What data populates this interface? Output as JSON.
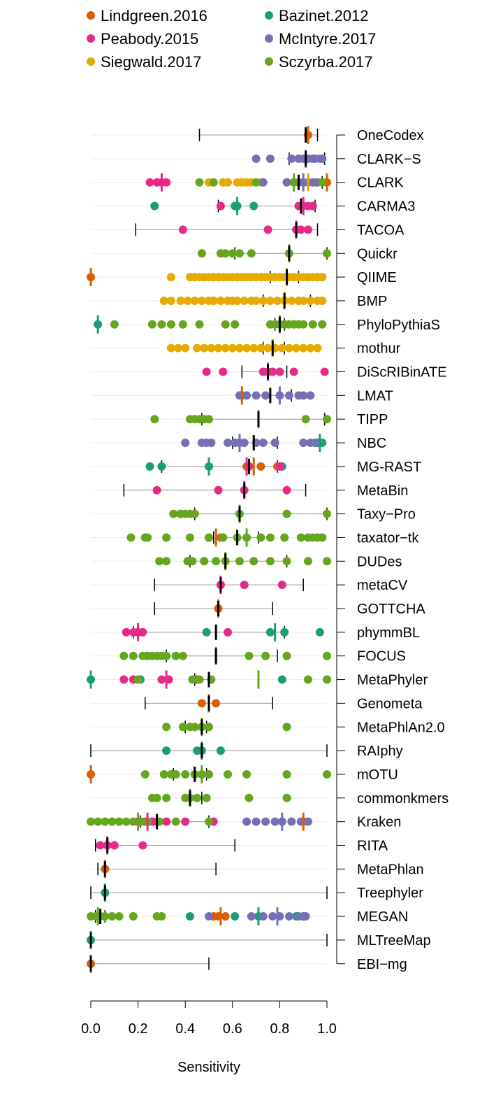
{
  "chart_data": {
    "type": "scatter",
    "xlabel": "Sensitivity",
    "ylabel": "",
    "xlim": [
      0,
      1
    ],
    "x_ticks": [
      "0.0",
      "0.2",
      "0.4",
      "0.6",
      "0.8",
      "1.0"
    ],
    "grid": true,
    "legend_position": "top",
    "legend": [
      {
        "key": "L",
        "name": "Lindgreen.2016",
        "color": "#d95f02"
      },
      {
        "key": "B",
        "name": "Bazinet.2012",
        "color": "#1b9e77"
      },
      {
        "key": "P",
        "name": "Peabody.2015",
        "color": "#e7298a"
      },
      {
        "key": "M",
        "name": "McIntyre.2017",
        "color": "#7570b3"
      },
      {
        "key": "S",
        "name": "Siegwald.2017",
        "color": "#e6ab02"
      },
      {
        "key": "Z",
        "name": "Sczyrba.2017",
        "color": "#66a61e"
      }
    ],
    "methods": [
      {
        "name": "OneCodex",
        "median": 0.91,
        "range": [
          0.46,
          0.96
        ],
        "series_medians": {
          "L": 0.92
        },
        "points": {
          "L": [
            0.92
          ]
        }
      },
      {
        "name": "CLARK−S",
        "median": 0.91,
        "range": [
          0.84,
          0.99
        ],
        "series_medians": {
          "M": 0.91
        },
        "points": {
          "M": [
            0.7,
            0.76,
            0.85,
            0.88,
            0.9,
            0.92,
            0.94,
            0.95,
            0.97,
            0.98
          ]
        }
      },
      {
        "name": "CLARK",
        "median": 0.88,
        "range": [
          0.86,
          0.98
        ],
        "series_medians": {
          "L": 1.0,
          "P": 0.3,
          "S": 0.92,
          "M": 0.9,
          "Z": 0.86
        },
        "points": {
          "L": [
            1.0
          ],
          "P": [
            0.25,
            0.28,
            0.3,
            0.32
          ],
          "S": [
            0.5,
            0.56,
            0.58,
            0.62,
            0.64,
            0.66,
            0.68,
            0.72,
            0.88,
            0.92,
            0.95
          ],
          "M": [
            0.73,
            0.83,
            0.86,
            0.88,
            0.9,
            0.92,
            0.94,
            0.96
          ],
          "Z": [
            0.46,
            0.52,
            0.7,
            0.86,
            0.98
          ]
        }
      },
      {
        "name": "CARMA3",
        "median": 0.89,
        "range": [
          0.54,
          0.95
        ],
        "series_medians": {
          "B": 0.62,
          "P": 0.9
        },
        "points": {
          "B": [
            0.27,
            0.61,
            0.62,
            0.69,
            0.94
          ],
          "P": [
            0.55,
            0.88,
            0.9,
            0.92,
            0.94
          ]
        }
      },
      {
        "name": "TACOA",
        "median": 0.87,
        "range": [
          0.19,
          0.96
        ],
        "series_medians": {
          "P": 0.87
        },
        "points": {
          "P": [
            0.39,
            0.75,
            0.87,
            0.89,
            0.92
          ]
        }
      },
      {
        "name": "Quickr",
        "median": 0.84,
        "range": [
          0.61,
          1.0
        ],
        "series_medians": {
          "Z": 0.84
        },
        "points": {
          "Z": [
            0.47,
            0.55,
            0.57,
            0.6,
            0.63,
            0.68,
            0.84,
            1.0
          ]
        }
      },
      {
        "name": "QIIME",
        "median": 0.83,
        "range": [
          0.76,
          0.88
        ],
        "series_medians": {
          "L": 0.0,
          "S": 0.83
        },
        "points": {
          "L": [
            0.0
          ],
          "S": [
            0.34,
            0.42,
            0.44,
            0.46,
            0.48,
            0.5,
            0.52,
            0.54,
            0.56,
            0.58,
            0.6,
            0.62,
            0.64,
            0.66,
            0.68,
            0.7,
            0.72,
            0.74,
            0.76,
            0.78,
            0.8,
            0.82,
            0.84,
            0.86,
            0.88,
            0.9,
            0.92,
            0.94,
            0.96,
            0.98
          ]
        }
      },
      {
        "name": "BMP",
        "median": 0.82,
        "range": [
          0.73,
          0.93
        ],
        "series_medians": {
          "S": 0.82
        },
        "points": {
          "S": [
            0.31,
            0.34,
            0.38,
            0.41,
            0.44,
            0.47,
            0.5,
            0.52,
            0.55,
            0.58,
            0.6,
            0.62,
            0.65,
            0.68,
            0.7,
            0.73,
            0.76,
            0.79,
            0.82,
            0.85,
            0.88,
            0.9,
            0.93,
            0.96,
            0.98
          ]
        }
      },
      {
        "name": "PhyloPythiaS",
        "median": 0.8,
        "range": [
          0.78,
          0.82
        ],
        "series_medians": {
          "B": 0.03,
          "Z": 0.8
        },
        "points": {
          "B": [
            0.03
          ],
          "Z": [
            0.1,
            0.26,
            0.3,
            0.34,
            0.39,
            0.46,
            0.57,
            0.61,
            0.76,
            0.78,
            0.8,
            0.82,
            0.84,
            0.86,
            0.88,
            0.9,
            0.94,
            0.98
          ]
        }
      },
      {
        "name": "mothur",
        "median": 0.77,
        "range": [
          0.73,
          0.82
        ],
        "series_medians": {
          "S": 0.77
        },
        "points": {
          "S": [
            0.34,
            0.37,
            0.4,
            0.45,
            0.48,
            0.51,
            0.54,
            0.57,
            0.6,
            0.63,
            0.66,
            0.69,
            0.72,
            0.75,
            0.78,
            0.81,
            0.84,
            0.87,
            0.9,
            0.93,
            0.96
          ]
        }
      },
      {
        "name": "DiScRIBinATE",
        "median": 0.75,
        "range": [
          0.64,
          0.83
        ],
        "series_medians": {
          "P": 0.75
        },
        "points": {
          "P": [
            0.49,
            0.56,
            0.73,
            0.75,
            0.77,
            0.8,
            0.86,
            0.99
          ]
        }
      },
      {
        "name": "LMAT",
        "median": 0.76,
        "range": [
          0.64,
          0.85
        ],
        "series_medians": {
          "L": 0.64,
          "M": 0.8
        },
        "points": {
          "L": [
            0.64
          ],
          "M": [
            0.63,
            0.66,
            0.7,
            0.74,
            0.8,
            0.84,
            0.88,
            0.9,
            0.93
          ]
        }
      },
      {
        "name": "TIPP",
        "median": 0.71,
        "range": [
          0.47,
          0.99
        ],
        "series_medians": {
          "Z": 0.71
        },
        "points": {
          "Z": [
            0.27,
            0.42,
            0.44,
            0.46,
            0.48,
            0.5,
            0.91,
            1.0
          ]
        }
      },
      {
        "name": "NBC",
        "median": 0.69,
        "range": [
          0.6,
          0.79
        ],
        "series_medians": {
          "B": 0.97,
          "M": 0.63
        },
        "points": {
          "B": [
            0.96,
            0.98
          ],
          "M": [
            0.4,
            0.47,
            0.49,
            0.51,
            0.58,
            0.61,
            0.63,
            0.65,
            0.7,
            0.73,
            0.78,
            0.9,
            0.93,
            0.95
          ]
        }
      },
      {
        "name": "MG-RAST",
        "median": 0.67,
        "range": [
          0.3,
          0.79
        ],
        "series_medians": {
          "B": 0.5,
          "L": 0.69,
          "P": 0.66
        },
        "points": {
          "B": [
            0.25,
            0.3,
            0.5,
            0.81
          ],
          "L": [
            0.66,
            0.72,
            0.79
          ],
          "P": [
            0.67,
            0.8
          ]
        }
      },
      {
        "name": "MetaBin",
        "median": 0.65,
        "range": [
          0.14,
          0.91
        ],
        "series_medians": {
          "P": 0.65
        },
        "points": {
          "P": [
            0.28,
            0.54,
            0.65,
            0.83
          ]
        }
      },
      {
        "name": "Taxy−Pro",
        "median": 0.63,
        "range": [
          0.44,
          1.0
        ],
        "series_medians": {
          "Z": 0.63
        },
        "points": {
          "Z": [
            0.35,
            0.38,
            0.4,
            0.42,
            0.44,
            0.63,
            0.83,
            1.0
          ]
        }
      },
      {
        "name": "taxator−tk",
        "median": 0.62,
        "range": [
          0.52,
          0.71
        ],
        "series_medians": {
          "L": 0.53,
          "Z": 0.66
        },
        "points": {
          "L": [
            0.5,
            0.55
          ],
          "Z": [
            0.17,
            0.23,
            0.24,
            0.32,
            0.42,
            0.5,
            0.56,
            0.62,
            0.66,
            0.72,
            0.76,
            0.82,
            0.89,
            0.92,
            0.94,
            0.96,
            0.98
          ]
        }
      },
      {
        "name": "DUDes",
        "median": 0.57,
        "range": [
          0.42,
          0.83
        ],
        "series_medians": {
          "Z": 0.57
        },
        "points": {
          "Z": [
            0.29,
            0.32,
            0.41,
            0.43,
            0.48,
            0.53,
            0.57,
            0.63,
            0.69,
            0.76,
            0.83,
            0.92,
            1.0
          ]
        }
      },
      {
        "name": "metaCV",
        "median": 0.55,
        "range": [
          0.27,
          0.9
        ],
        "series_medians": {
          "P": 0.55
        },
        "points": {
          "P": [
            0.55,
            0.65,
            0.81
          ]
        }
      },
      {
        "name": "GOTTCHA",
        "median": 0.54,
        "range": [
          0.27,
          0.77
        ],
        "series_medians": {
          "L": 0.54
        },
        "points": {
          "L": [
            0.54
          ]
        }
      },
      {
        "name": "phymmBL",
        "median": 0.53,
        "range": [
          0.18,
          0.82
        ],
        "series_medians": {
          "P": 0.2,
          "B": 0.78
        },
        "points": {
          "P": [
            0.15,
            0.18,
            0.2,
            0.22,
            0.58
          ],
          "B": [
            0.49,
            0.76,
            0.82,
            0.97
          ]
        }
      },
      {
        "name": "FOCUS",
        "median": 0.53,
        "range": [
          0.32,
          0.79
        ],
        "series_medians": {
          "Z": 0.53
        },
        "points": {
          "Z": [
            0.14,
            0.18,
            0.22,
            0.24,
            0.26,
            0.28,
            0.3,
            0.32,
            0.36,
            0.39,
            0.67,
            0.74,
            0.83,
            1.0
          ]
        }
      },
      {
        "name": "MetaPhyler",
        "median": 0.5,
        "range": [
          0.44,
          0.5
        ],
        "series_medians": {
          "B": 0.0,
          "P": 0.32,
          "Z": 0.71
        },
        "points": {
          "B": [
            0.0,
            0.21,
            0.81
          ],
          "P": [
            0.14,
            0.18,
            0.3,
            0.33,
            0.44,
            0.45
          ],
          "Z": [
            0.2,
            0.43,
            0.46,
            0.51,
            0.92,
            1.0
          ]
        }
      },
      {
        "name": "Genometa",
        "median": 0.5,
        "range": [
          0.23,
          0.77
        ],
        "series_medians": {
          "L": 0.5
        },
        "points": {
          "L": [
            0.47,
            0.53
          ]
        }
      },
      {
        "name": "MetaPhlAn2.0",
        "median": 0.47,
        "range": [
          0.4,
          0.49
        ],
        "series_medians": {
          "Z": 0.47
        },
        "points": {
          "Z": [
            0.32,
            0.39,
            0.42,
            0.44,
            0.47,
            0.5,
            0.83
          ]
        }
      },
      {
        "name": "RAIphy",
        "median": 0.47,
        "range": [
          0.0,
          1.0
        ],
        "series_medians": {
          "B": 0.47
        },
        "points": {
          "B": [
            0.32,
            0.45,
            0.47,
            0.55
          ]
        }
      },
      {
        "name": "mOTU",
        "median": 0.44,
        "range": [
          0.35,
          0.49
        ],
        "series_medians": {
          "L": 0.0,
          "Z": 0.47
        },
        "points": {
          "L": [
            0.0
          ],
          "Z": [
            0.23,
            0.31,
            0.34,
            0.36,
            0.4,
            0.44,
            0.47,
            0.5,
            0.58,
            0.66,
            0.83,
            1.0
          ]
        }
      },
      {
        "name": "commonkmers",
        "median": 0.42,
        "range": [
          0.42,
          0.47
        ],
        "series_medians": {
          "Z": 0.42
        },
        "points": {
          "Z": [
            0.26,
            0.28,
            0.32,
            0.4,
            0.42,
            0.45,
            0.49,
            0.67,
            0.83
          ]
        }
      },
      {
        "name": "Kraken",
        "median": 0.28,
        "range": [
          0.21,
          0.5
        ],
        "series_medians": {
          "L": 0.9,
          "P": 0.24,
          "M": 0.81,
          "Z": 0.2
        },
        "points": {
          "L": [
            0.9
          ],
          "P": [
            0.2,
            0.23,
            0.26,
            0.28,
            0.32,
            0.4,
            0.52
          ],
          "M": [
            0.66,
            0.7,
            0.74,
            0.78,
            0.81,
            0.85,
            0.89,
            0.92
          ],
          "Z": [
            0.0,
            0.03,
            0.06,
            0.09,
            0.12,
            0.15,
            0.18,
            0.21,
            0.24,
            0.29,
            0.36,
            0.5
          ]
        }
      },
      {
        "name": "RITA",
        "median": 0.07,
        "range": [
          0.02,
          0.61
        ],
        "series_medians": {
          "P": 0.07
        },
        "points": {
          "P": [
            0.04,
            0.07,
            0.1,
            0.22
          ]
        }
      },
      {
        "name": "MetaPhlan",
        "median": 0.06,
        "range": [
          0.03,
          0.53
        ],
        "series_medians": {
          "L": 0.06
        },
        "points": {
          "L": [
            0.06
          ]
        }
      },
      {
        "name": "Treephyler",
        "median": 0.06,
        "range": [
          0.0,
          1.0
        ],
        "series_medians": {
          "B": 0.06
        },
        "points": {
          "B": [
            0.06
          ]
        }
      },
      {
        "name": "MEGAN",
        "median": 0.04,
        "range": [
          0.02,
          0.06
        ],
        "series_medians": {
          "L": 0.55,
          "B": 0.71,
          "M": 0.79,
          "Z": 0.03
        },
        "points": {
          "L": [
            0.52,
            0.54,
            0.57
          ],
          "B": [
            0.42,
            0.61,
            0.71,
            0.87,
            0.9
          ],
          "M": [
            0.5,
            0.68,
            0.73,
            0.77,
            0.8,
            0.84,
            0.88,
            0.91
          ],
          "Z": [
            0.0,
            0.02,
            0.04,
            0.06,
            0.09,
            0.12,
            0.18,
            0.28,
            0.3
          ]
        }
      },
      {
        "name": "MLTreeMap",
        "median": 0.0,
        "range": [
          0.0,
          1.0
        ],
        "series_medians": {
          "B": 0.0
        },
        "points": {
          "B": [
            0.0
          ]
        }
      },
      {
        "name": "EBI−mg",
        "median": 0.0,
        "range": [
          0.0,
          0.5
        ],
        "series_medians": {
          "L": 0.0
        },
        "points": {
          "L": [
            0.0
          ]
        }
      }
    ]
  }
}
